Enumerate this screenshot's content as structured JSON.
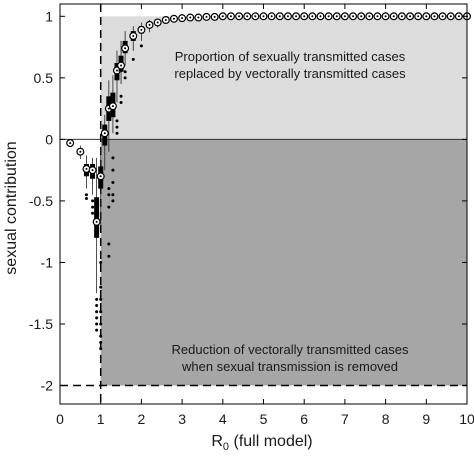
{
  "chart_data": {
    "type": "box",
    "xlabel": "R",
    "xlabel_sub": "0",
    "xlabel_suffix": " (full model)",
    "ylabel": "sexual contribution",
    "xlim": [
      0,
      10
    ],
    "ylim": [
      -2.15,
      1.1
    ],
    "xticks": [
      "0",
      "1",
      "2",
      "3",
      "4",
      "5",
      "6",
      "7",
      "8",
      "9",
      "10"
    ],
    "yticks": [
      "1",
      "0.5",
      "0",
      "-0.5",
      "-1",
      "-1.5",
      "-2"
    ],
    "ytick_values": [
      1,
      0.5,
      0,
      -0.5,
      -1,
      -1.5,
      -2
    ],
    "reference_lines": {
      "x_threshold": 1,
      "y_lower": -2,
      "y_zero": 0
    },
    "regions": {
      "upper": {
        "text_line1": "Proportion of sexually transmitted cases",
        "text_line2": "replaced by vectorally transmitted cases",
        "color": "#dcdcdc",
        "range": [
          0,
          1
        ]
      },
      "lower": {
        "text_line1": "Reduction of vectorally transmitted cases",
        "text_line2": "when sexual transmission is removed",
        "color": "#a6a6a6",
        "range": [
          -2,
          0
        ]
      }
    },
    "boxes": [
      {
        "x": 0.25,
        "median": -0.03,
        "q1": -0.04,
        "q3": -0.02,
        "wlo": -0.05,
        "whi": -0.01,
        "outliers": []
      },
      {
        "x": 0.5,
        "median": -0.1,
        "q1": -0.12,
        "q3": -0.08,
        "wlo": -0.16,
        "whi": -0.05,
        "outliers": []
      },
      {
        "x": 0.65,
        "median": -0.24,
        "q1": -0.3,
        "q3": -0.2,
        "wlo": -0.4,
        "whi": -0.13,
        "outliers": [
          -0.45,
          -0.48
        ]
      },
      {
        "x": 0.8,
        "median": -0.25,
        "q1": -0.32,
        "q3": -0.2,
        "wlo": -0.45,
        "whi": -0.15,
        "outliers": [
          -0.5,
          -0.55,
          -0.6
        ]
      },
      {
        "x": 0.9,
        "median": -0.67,
        "q1": -0.8,
        "q3": -0.47,
        "wlo": -1.25,
        "whi": -0.15,
        "outliers": [
          -1.3,
          -1.35,
          -1.4,
          -1.45,
          -1.5,
          -1.55
        ]
      },
      {
        "x": 1.0,
        "median": -0.3,
        "q1": -0.4,
        "q3": -0.22,
        "wlo": -0.7,
        "whi": -0.08,
        "outliers": [
          -1.0,
          -1.2,
          -1.3,
          -1.4,
          -1.5,
          -1.6,
          -1.65,
          -1.7
        ]
      },
      {
        "x": 1.1,
        "median": 0.05,
        "q1": -0.05,
        "q3": 0.12,
        "wlo": -0.25,
        "whi": 0.2,
        "outliers": []
      },
      {
        "x": 1.2,
        "median": 0.25,
        "q1": 0.15,
        "q3": 0.35,
        "wlo": -0.1,
        "whi": 0.48,
        "outliers": [
          -0.4,
          -0.45,
          -0.55,
          -0.85,
          -0.95
        ]
      },
      {
        "x": 1.3,
        "median": 0.27,
        "q1": 0.18,
        "q3": 0.38,
        "wlo": 0.05,
        "whi": 0.52,
        "outliers": [
          -0.15,
          -0.25,
          -0.35,
          -0.45,
          -0.5
        ]
      },
      {
        "x": 1.4,
        "median": 0.56,
        "q1": 0.48,
        "q3": 0.62,
        "wlo": 0.3,
        "whi": 0.72,
        "outliers": [
          0.05,
          0.1,
          0.15
        ]
      },
      {
        "x": 1.5,
        "median": 0.6,
        "q1": 0.55,
        "q3": 0.68,
        "wlo": 0.45,
        "whi": 0.8,
        "outliers": [
          0.3,
          0.35
        ]
      },
      {
        "x": 1.6,
        "median": 0.74,
        "q1": 0.7,
        "q3": 0.8,
        "wlo": 0.6,
        "whi": 0.88,
        "outliers": [
          0.5,
          0.55
        ]
      },
      {
        "x": 1.8,
        "median": 0.84,
        "q1": 0.8,
        "q3": 0.88,
        "wlo": 0.72,
        "whi": 0.92,
        "outliers": [
          0.65
        ]
      },
      {
        "x": 2.0,
        "median": 0.89,
        "q1": 0.86,
        "q3": 0.92,
        "wlo": 0.8,
        "whi": 0.95,
        "outliers": [
          0.76
        ]
      },
      {
        "x": 2.2,
        "median": 0.93,
        "q1": 0.91,
        "q3": 0.95,
        "wlo": 0.87,
        "whi": 0.97,
        "outliers": []
      },
      {
        "x": 2.4,
        "median": 0.95,
        "q1": 0.94,
        "q3": 0.96,
        "wlo": 0.91,
        "whi": 0.98,
        "outliers": []
      },
      {
        "x": 2.6,
        "median": 0.97,
        "q1": 0.96,
        "q3": 0.98,
        "wlo": 0.94,
        "whi": 0.99,
        "outliers": []
      },
      {
        "x": 2.8,
        "median": 0.98,
        "q1": 0.97,
        "q3": 0.985,
        "wlo": 0.96,
        "whi": 0.995,
        "outliers": []
      },
      {
        "x": 3.0,
        "median": 0.985,
        "q1": 0.98,
        "q3": 0.99,
        "wlo": 0.97,
        "whi": 1.0,
        "outliers": []
      },
      {
        "x": 3.2,
        "median": 0.99,
        "q1": 0.985,
        "q3": 0.995,
        "wlo": 0.98,
        "whi": 1.0,
        "outliers": []
      },
      {
        "x": 3.4,
        "median": 0.99,
        "q1": 0.99,
        "q3": 0.995,
        "wlo": 0.985,
        "whi": 1.0,
        "outliers": []
      },
      {
        "x": 3.6,
        "median": 0.995,
        "q1": 0.99,
        "q3": 1.0,
        "wlo": 0.99,
        "whi": 1.0,
        "outliers": []
      },
      {
        "x": 3.8,
        "median": 0.995,
        "q1": 0.99,
        "q3": 1.0,
        "wlo": 0.99,
        "whi": 1.0,
        "outliers": []
      },
      {
        "x": 4.0,
        "median": 1.0,
        "q1": 0.995,
        "q3": 1.0,
        "wlo": 0.99,
        "whi": 1.0,
        "outliers": []
      },
      {
        "x": 4.2,
        "median": 1.0,
        "q1": 0.995,
        "q3": 1.0,
        "wlo": 0.99,
        "whi": 1.0,
        "outliers": []
      },
      {
        "x": 4.4,
        "median": 1.0,
        "q1": 1.0,
        "q3": 1.0,
        "wlo": 0.995,
        "whi": 1.0,
        "outliers": []
      },
      {
        "x": 4.6,
        "median": 1.0,
        "q1": 1.0,
        "q3": 1.0,
        "wlo": 0.995,
        "whi": 1.0,
        "outliers": []
      },
      {
        "x": 4.8,
        "median": 1.0,
        "q1": 1.0,
        "q3": 1.0,
        "wlo": 1.0,
        "whi": 1.0,
        "outliers": []
      },
      {
        "x": 5.0,
        "median": 1.0,
        "q1": 1.0,
        "q3": 1.0,
        "wlo": 1.0,
        "whi": 1.0,
        "outliers": []
      },
      {
        "x": 5.2,
        "median": 1.0,
        "q1": 1.0,
        "q3": 1.0,
        "wlo": 1.0,
        "whi": 1.0,
        "outliers": []
      },
      {
        "x": 5.4,
        "median": 1.0,
        "q1": 1.0,
        "q3": 1.0,
        "wlo": 1.0,
        "whi": 1.0,
        "outliers": []
      },
      {
        "x": 5.6,
        "median": 1.0,
        "q1": 1.0,
        "q3": 1.0,
        "wlo": 1.0,
        "whi": 1.0,
        "outliers": []
      },
      {
        "x": 5.8,
        "median": 1.0,
        "q1": 1.0,
        "q3": 1.0,
        "wlo": 1.0,
        "whi": 1.0,
        "outliers": []
      },
      {
        "x": 6.0,
        "median": 1.0,
        "q1": 1.0,
        "q3": 1.0,
        "wlo": 1.0,
        "whi": 1.0,
        "outliers": []
      },
      {
        "x": 6.2,
        "median": 1.0,
        "q1": 1.0,
        "q3": 1.0,
        "wlo": 1.0,
        "whi": 1.0,
        "outliers": []
      },
      {
        "x": 6.4,
        "median": 1.0,
        "q1": 1.0,
        "q3": 1.0,
        "wlo": 1.0,
        "whi": 1.0,
        "outliers": []
      },
      {
        "x": 6.6,
        "median": 1.0,
        "q1": 1.0,
        "q3": 1.0,
        "wlo": 1.0,
        "whi": 1.0,
        "outliers": []
      },
      {
        "x": 6.8,
        "median": 1.0,
        "q1": 1.0,
        "q3": 1.0,
        "wlo": 1.0,
        "whi": 1.0,
        "outliers": []
      },
      {
        "x": 7.0,
        "median": 1.0,
        "q1": 1.0,
        "q3": 1.0,
        "wlo": 1.0,
        "whi": 1.0,
        "outliers": []
      },
      {
        "x": 7.2,
        "median": 1.0,
        "q1": 1.0,
        "q3": 1.0,
        "wlo": 1.0,
        "whi": 1.0,
        "outliers": []
      },
      {
        "x": 7.4,
        "median": 1.0,
        "q1": 1.0,
        "q3": 1.0,
        "wlo": 1.0,
        "whi": 1.0,
        "outliers": []
      },
      {
        "x": 7.6,
        "median": 1.0,
        "q1": 1.0,
        "q3": 1.0,
        "wlo": 1.0,
        "whi": 1.0,
        "outliers": []
      },
      {
        "x": 7.8,
        "median": 1.0,
        "q1": 1.0,
        "q3": 1.0,
        "wlo": 1.0,
        "whi": 1.0,
        "outliers": []
      },
      {
        "x": 8.0,
        "median": 1.0,
        "q1": 1.0,
        "q3": 1.0,
        "wlo": 1.0,
        "whi": 1.0,
        "outliers": []
      },
      {
        "x": 8.2,
        "median": 1.0,
        "q1": 1.0,
        "q3": 1.0,
        "wlo": 1.0,
        "whi": 1.0,
        "outliers": []
      },
      {
        "x": 8.4,
        "median": 1.0,
        "q1": 1.0,
        "q3": 1.0,
        "wlo": 1.0,
        "whi": 1.0,
        "outliers": []
      },
      {
        "x": 8.6,
        "median": 1.0,
        "q1": 1.0,
        "q3": 1.0,
        "wlo": 1.0,
        "whi": 1.0,
        "outliers": []
      },
      {
        "x": 8.8,
        "median": 1.0,
        "q1": 1.0,
        "q3": 1.0,
        "wlo": 1.0,
        "whi": 1.0,
        "outliers": []
      },
      {
        "x": 9.0,
        "median": 1.0,
        "q1": 1.0,
        "q3": 1.0,
        "wlo": 1.0,
        "whi": 1.0,
        "outliers": []
      },
      {
        "x": 9.2,
        "median": 1.0,
        "q1": 1.0,
        "q3": 1.0,
        "wlo": 1.0,
        "whi": 1.0,
        "outliers": []
      },
      {
        "x": 9.4,
        "median": 1.0,
        "q1": 1.0,
        "q3": 1.0,
        "wlo": 1.0,
        "whi": 1.0,
        "outliers": []
      },
      {
        "x": 9.6,
        "median": 1.0,
        "q1": 1.0,
        "q3": 1.0,
        "wlo": 1.0,
        "whi": 1.0,
        "outliers": []
      },
      {
        "x": 9.8,
        "median": 1.0,
        "q1": 1.0,
        "q3": 1.0,
        "wlo": 1.0,
        "whi": 1.0,
        "outliers": []
      },
      {
        "x": 10.0,
        "median": 1.0,
        "q1": 1.0,
        "q3": 1.0,
        "wlo": 1.0,
        "whi": 1.0,
        "outliers": []
      }
    ]
  }
}
